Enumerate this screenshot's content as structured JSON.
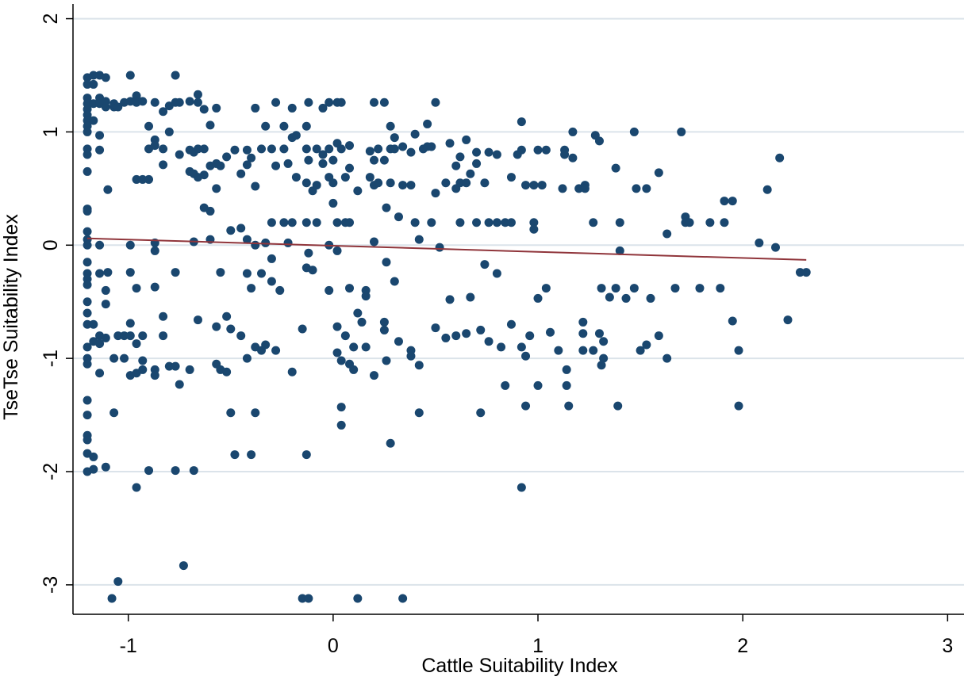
{
  "chart_data": {
    "type": "scatter",
    "x_label": "Cattle Suitability Index",
    "y_label": "TseTse Suitability Index",
    "xlim": [
      -1.27,
      3.08
    ],
    "ylim": [
      -3.26,
      2.13
    ],
    "xticks": [
      -1,
      0,
      1,
      2,
      3
    ],
    "yticks": [
      -3,
      -2,
      -1,
      0,
      1,
      2
    ],
    "grid": true,
    "color": "#1a476f",
    "x": [
      -1.2,
      -1.2,
      -1.2,
      -1.2,
      -1.2,
      -1.2,
      -1.2,
      -1.2,
      -1.2,
      -1.2,
      -1.2,
      -1.2,
      -1.2,
      -1.2,
      -1.2,
      -1.2,
      -1.2,
      -1.2,
      -1.2,
      -1.2,
      -1.2,
      -1.2,
      -1.2,
      -1.2,
      -1.2,
      -1.2,
      -1.2,
      -1.2,
      -1.2,
      -1.2,
      -1.2,
      -1.2,
      -1.2,
      -1.17,
      -1.17,
      -1.17,
      -1.17,
      -1.17,
      -1.17,
      -1.17,
      -1.17,
      -1.14,
      -1.14,
      -1.14,
      -1.14,
      -1.14,
      -1.14,
      -1.14,
      -1.14,
      -1.14,
      -1.14,
      -1.11,
      -1.11,
      -1.11,
      -1.11,
      -1.11,
      -1.11,
      -1.11,
      -1.1,
      -1.1,
      -1.07,
      -1.07,
      -1.07,
      -1.07,
      -1.05,
      -1.05,
      -1.05,
      -1.08,
      -1.02,
      -1.02,
      -1.02,
      -0.99,
      -0.99,
      -0.99,
      -0.99,
      -0.99,
      -0.99,
      -0.99,
      -0.96,
      -0.96,
      -0.96,
      -0.96,
      -0.96,
      -0.96,
      -0.96,
      -0.93,
      -0.93,
      -0.93,
      -0.93,
      -0.93,
      -0.9,
      -0.9,
      -0.9,
      -0.9,
      -0.87,
      -0.87,
      -0.87,
      -0.87,
      -0.87,
      -0.87,
      -0.87,
      -0.87,
      -0.83,
      -0.83,
      -0.83,
      -0.83,
      -0.83,
      -0.8,
      -0.8,
      -0.8,
      -0.77,
      -0.77,
      -0.77,
      -0.77,
      -0.77,
      -0.75,
      -0.75,
      -0.75,
      -0.73,
      -0.7,
      -0.7,
      -0.7,
      -0.7,
      -0.68,
      -0.68,
      -0.68,
      -0.68,
      -0.66,
      -0.66,
      -0.66,
      -0.66,
      -0.66,
      -0.63,
      -0.63,
      -0.63,
      -0.63,
      -0.6,
      -0.6,
      -0.6,
      -0.6,
      -0.57,
      -0.57,
      -0.57,
      -0.57,
      -0.57,
      -0.55,
      -0.55,
      -0.55,
      -0.52,
      -0.52,
      -0.52,
      -0.5,
      -0.5,
      -0.5,
      -0.48,
      -0.48,
      -0.45,
      -0.45,
      -0.45,
      -0.42,
      -0.42,
      -0.42,
      -0.42,
      -0.42,
      -0.4,
      -0.4,
      -0.4,
      -0.38,
      -0.38,
      -0.38,
      -0.38,
      -0.38,
      -0.35,
      -0.35,
      -0.35,
      -0.33,
      -0.33,
      -0.33,
      -0.3,
      -0.3,
      -0.3,
      -0.3,
      -0.28,
      -0.28,
      -0.28,
      -0.26,
      -0.24,
      -0.24,
      -0.24,
      -0.22,
      -0.22,
      -0.2,
      -0.2,
      -0.2,
      -0.2,
      -0.18,
      -0.18,
      -0.15,
      -0.15,
      -0.13,
      -0.13,
      -0.13,
      -0.13,
      -0.13,
      -0.13,
      -0.12,
      -0.12,
      -0.12,
      -0.12,
      -0.1,
      -0.1,
      -0.08,
      -0.08,
      -0.08,
      -0.05,
      -0.05,
      -0.05,
      -0.02,
      -0.02,
      -0.02,
      -0.02,
      -0.02,
      0.0,
      0.0,
      0.0,
      0.02,
      0.02,
      0.02,
      0.02,
      0.02,
      0.02,
      0.04,
      0.04,
      0.04,
      0.04,
      0.04,
      0.06,
      0.06,
      0.06,
      0.08,
      0.08,
      0.08,
      0.08,
      0.08,
      0.1,
      0.1,
      0.12,
      0.12,
      0.12,
      0.14,
      0.16,
      0.16,
      0.16,
      0.18,
      0.18,
      0.2,
      0.2,
      0.2,
      0.2,
      0.2,
      0.22,
      0.22,
      0.25,
      0.25,
      0.25,
      0.25,
      0.26,
      0.26,
      0.26,
      0.28,
      0.28,
      0.28,
      0.28,
      0.3,
      0.3,
      0.3,
      0.32,
      0.32,
      0.34,
      0.34,
      0.34,
      0.38,
      0.38,
      0.38,
      0.38,
      0.4,
      0.4,
      0.42,
      0.42,
      0.42,
      0.44,
      0.46,
      0.46,
      0.48,
      0.48,
      0.5,
      0.5,
      0.5,
      0.52,
      0.55,
      0.55,
      0.57,
      0.57,
      0.6,
      0.6,
      0.6,
      0.62,
      0.62,
      0.62,
      0.65,
      0.65,
      0.65,
      0.67,
      0.67,
      0.7,
      0.7,
      0.7,
      0.72,
      0.72,
      0.74,
      0.74,
      0.76,
      0.76,
      0.76,
      0.8,
      0.8,
      0.8,
      0.82,
      0.84,
      0.84,
      0.87,
      0.87,
      0.87,
      0.9,
      0.92,
      0.92,
      0.92,
      0.92,
      0.94,
      0.94,
      0.94,
      0.96,
      0.98,
      0.98,
      0.98,
      1.0,
      1.0,
      1.0,
      1.02,
      1.04,
      1.04,
      1.06,
      1.1,
      1.12,
      1.13,
      1.13,
      1.14,
      1.14,
      1.15,
      1.17,
      1.17,
      1.2,
      1.22,
      1.22,
      1.22,
      1.23,
      1.23,
      1.27,
      1.27,
      1.28,
      1.3,
      1.3,
      1.31,
      1.31,
      1.32,
      1.32,
      1.35,
      1.38,
      1.38,
      1.39,
      1.4,
      1.4,
      1.43,
      1.47,
      1.47,
      1.48,
      1.5,
      1.53,
      1.53,
      1.55,
      1.59,
      1.59,
      1.63,
      1.63,
      1.67,
      1.7,
      1.72,
      1.72,
      1.74,
      1.79,
      1.84,
      1.89,
      1.91,
      1.91,
      1.95,
      1.95,
      1.98,
      1.98,
      2.08,
      2.12,
      2.16,
      2.18,
      2.22,
      2.28,
      2.31
    ],
    "values": [
      1.48,
      1.42,
      1.3,
      1.25,
      1.2,
      1.15,
      1.1,
      1.05,
      1.0,
      0.85,
      0.8,
      0.65,
      0.32,
      0.3,
      0.12,
      0.05,
      0,
      -0.15,
      -0.25,
      -0.3,
      -0.35,
      -0.5,
      -0.6,
      -0.7,
      -0.9,
      -1.0,
      -1.05,
      -1.37,
      -1.5,
      -1.68,
      -1.72,
      -1.84,
      -2.0,
      1.5,
      1.42,
      1.25,
      1.1,
      -0.7,
      -0.85,
      -1.87,
      -1.98,
      1.5,
      1.3,
      1.25,
      0.97,
      0.84,
      0,
      -0.25,
      -0.8,
      -0.87,
      -1.13,
      1.48,
      1.27,
      1.22,
      -0.4,
      -0.52,
      -0.82,
      -1.96,
      0.49,
      -0.24,
      1.25,
      1.22,
      -1.0,
      -1.48,
      1.22,
      -0.8,
      -2.97,
      -3.12,
      1.26,
      -0.8,
      -1.0,
      1.5,
      1.27,
      -0.24,
      -0.69,
      -0.8,
      -1.15,
      0,
      1.32,
      1.26,
      0.58,
      -0.38,
      -0.87,
      -1.13,
      -2.14,
      1.27,
      0.58,
      -0.8,
      -1.1,
      -1.02,
      1.05,
      0.85,
      0.58,
      -1.99,
      1.26,
      0.93,
      0.88,
      -0.05,
      0.02,
      -0.37,
      -1.1,
      -1.15,
      1.18,
      0.85,
      0.71,
      -0.63,
      -0.8,
      1.23,
      1.0,
      -1.07,
      1.5,
      1.26,
      -0.24,
      -1.07,
      -1.99,
      1.26,
      0.8,
      -1.23,
      -2.83,
      1.27,
      0.84,
      0.65,
      -1.1,
      0.82,
      0.63,
      0.03,
      -1.99,
      1.33,
      1.26,
      0.85,
      0.6,
      -0.66,
      1.2,
      0.85,
      0.62,
      0.33,
      1.06,
      0.7,
      0.3,
      0.05,
      1.21,
      0.72,
      0.5,
      -0.72,
      -1.05,
      0.7,
      -0.24,
      -1.1,
      0.78,
      -0.63,
      -1.12,
      0.13,
      -0.74,
      -1.48,
      0.84,
      -1.85,
      0.63,
      0.15,
      -0.8,
      0.84,
      0.71,
      0.05,
      -0.25,
      -1.0,
      0.77,
      -0.38,
      -1.85,
      1.21,
      0.52,
      0,
      -0.9,
      -1.48,
      0.85,
      -0.25,
      -0.93,
      1.05,
      0.02,
      -0.88,
      0.85,
      0.2,
      -0.32,
      -0.12,
      1.26,
      0.7,
      -0.93,
      -0.4,
      1.05,
      0.85,
      0.2,
      0.72,
      0.02,
      1.21,
      0.95,
      0.2,
      -1.12,
      0.97,
      0.6,
      -0.74,
      -3.12,
      1.05,
      0.85,
      0.55,
      0.2,
      -0.2,
      -1.85,
      1.26,
      0.75,
      -0.07,
      -3.12,
      0.48,
      -0.22,
      0.85,
      0.53,
      0.2,
      1.21,
      0.72,
      0.8,
      1.26,
      0.85,
      0.6,
      0,
      -0.4,
      0.75,
      0.37,
      0.55,
      1.26,
      0.9,
      0.2,
      -0.05,
      -0.72,
      -0.95,
      1.26,
      0.85,
      -1.02,
      -1.59,
      -1.43,
      0.6,
      0.2,
      -0.8,
      0.88,
      0.68,
      0.2,
      -0.38,
      -1.05,
      -0.9,
      -1.1,
      0.48,
      -0.6,
      -3.12,
      -0.68,
      -0.4,
      -0.45,
      -0.9,
      0.83,
      0.6,
      1.26,
      0.75,
      0.53,
      0.03,
      -1.15,
      0.85,
      0.55,
      1.26,
      0.75,
      -0.68,
      -0.75,
      0.33,
      -0.15,
      -1.02,
      1.05,
      0.85,
      0.55,
      -1.75,
      0.95,
      0.85,
      -0.32,
      0.25,
      -0.85,
      0.87,
      0.53,
      -3.12,
      0.82,
      0.53,
      -0.93,
      -0.98,
      0.98,
      0.2,
      0.05,
      -1.06,
      -1.48,
      0.85,
      1.07,
      0.87,
      0.87,
      0.2,
      1.26,
      0.46,
      -0.73,
      -0.02,
      0.55,
      -0.82,
      0.9,
      -0.48,
      0.7,
      0.5,
      -0.8,
      0.78,
      0.55,
      0.2,
      0.93,
      0.55,
      -0.78,
      0.63,
      -0.46,
      0.82,
      0.72,
      0.2,
      -0.75,
      -1.48,
      0.55,
      -0.17,
      0.82,
      0.2,
      -0.85,
      0.8,
      0.2,
      -0.25,
      -0.9,
      0.2,
      -1.24,
      0.6,
      0.2,
      -0.7,
      0.8,
      1.09,
      0.84,
      -0.9,
      -2.14,
      0.53,
      -0.98,
      -1.42,
      -0.8,
      0.53,
      0.2,
      0.14,
      0.84,
      -1.24,
      -0.47,
      0.53,
      0.84,
      -0.38,
      -0.77,
      -0.93,
      0.5,
      0.8,
      0.84,
      -1.1,
      -1.24,
      -1.42,
      1.0,
      0.77,
      0.5,
      -0.68,
      -0.78,
      -0.93,
      0.53,
      0.5,
      0.2,
      -0.93,
      0.97,
      -0.78,
      0.92,
      -0.38,
      -1.06,
      -0.85,
      -1.0,
      -0.46,
      0.68,
      -0.38,
      -1.42,
      0.2,
      -0.05,
      -0.47,
      -0.38,
      1.0,
      0.5,
      -0.93,
      0.5,
      -0.88,
      -0.47,
      0.64,
      -0.8,
      0.1,
      -1.0,
      -0.38,
      1.0,
      0.25,
      0.2,
      0.2,
      -0.38,
      0.2,
      -0.38,
      0.2,
      0.39,
      0.39,
      -0.67,
      -0.93,
      -1.42,
      0.02,
      0.49,
      -0.02,
      0.77,
      -0.66,
      -0.24,
      -0.24
    ],
    "fit_line": {
      "color": "#90353b",
      "x": [
        -1.2,
        2.31
      ],
      "values": [
        0.06,
        -0.13
      ]
    }
  }
}
